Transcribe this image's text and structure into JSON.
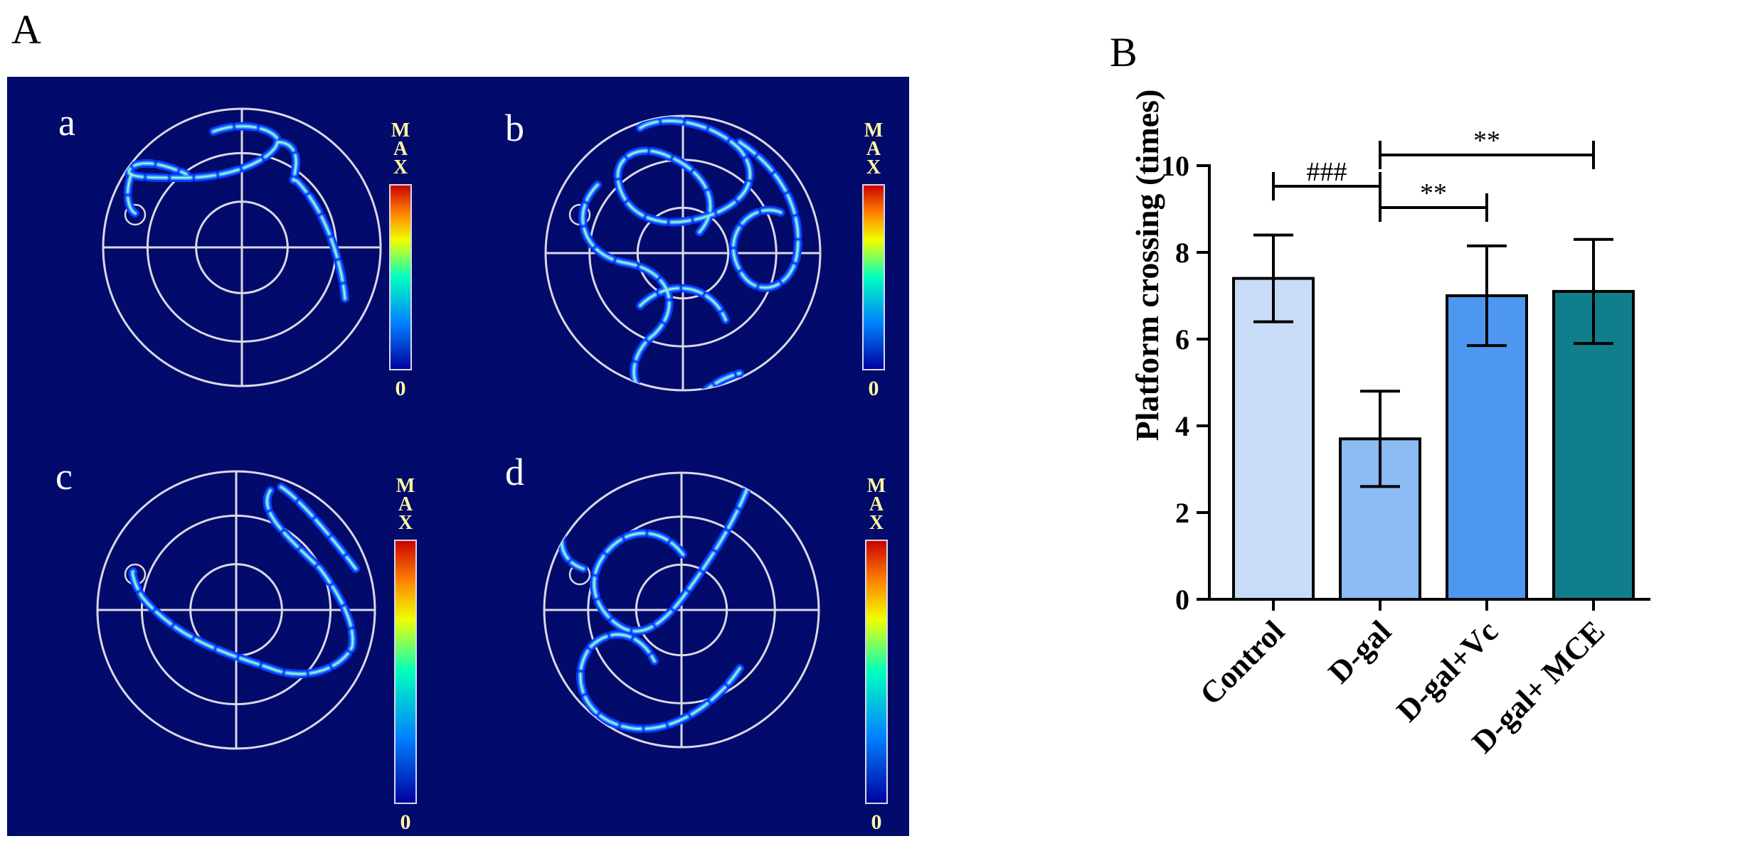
{
  "panel_a": {
    "label": "A",
    "subpanels": [
      {
        "label": "a",
        "scale_max": "MAX",
        "scale_min": "0"
      },
      {
        "label": "b",
        "scale_max": "MAX",
        "scale_min": "0"
      },
      {
        "label": "c",
        "scale_max": "MAX",
        "scale_min": "0"
      },
      {
        "label": "d",
        "scale_max": "MAX",
        "scale_min": "0"
      }
    ],
    "colors": {
      "background": "#020a6b",
      "ring": "#d9d9e6",
      "path_core": "#3fa8ff"
    }
  },
  "panel_b": {
    "label": "B"
  },
  "chart_data": {
    "type": "bar",
    "title": "",
    "xlabel": "",
    "ylabel": "Platform crossing (times)",
    "categories": [
      "Control",
      "D-gal",
      "D-gal+Vc",
      "D-gal+ MCE"
    ],
    "values": [
      7.4,
      3.7,
      7.0,
      7.1
    ],
    "errors": [
      1.0,
      1.1,
      1.15,
      1.2
    ],
    "colors": [
      "#c8dcf8",
      "#8cbaf2",
      "#4d97f0",
      "#117e8c"
    ],
    "ylim": [
      0,
      10
    ],
    "yticks": [
      "0",
      "2",
      "4",
      "6",
      "8",
      "10"
    ],
    "grid": false,
    "significance": [
      {
        "from": 0,
        "to": 1,
        "label": "###"
      },
      {
        "from": 1,
        "to": 2,
        "label": "**"
      },
      {
        "from": 1,
        "to": 3,
        "label": "**"
      }
    ]
  }
}
